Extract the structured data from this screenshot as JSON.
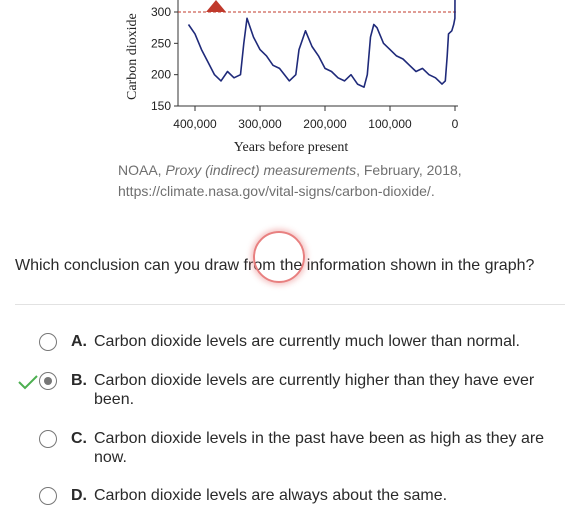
{
  "chart": {
    "ylabel": "Carbon dioxide",
    "xlabel": "Years before present",
    "y_ticks": [
      "300",
      "250",
      "200",
      "150"
    ],
    "x_ticks": [
      "400,000",
      "300,000",
      "200,000",
      "100,000",
      "0"
    ]
  },
  "chart_data": {
    "type": "line",
    "ylabel": "Carbon dioxide",
    "xlabel": "Years before present",
    "ylim": [
      150,
      320
    ],
    "xlim": [
      400000,
      0
    ],
    "reference_line": 300,
    "x": [
      410000,
      400000,
      390000,
      380000,
      370000,
      360000,
      350000,
      340000,
      330000,
      325000,
      320000,
      310000,
      300000,
      290000,
      280000,
      270000,
      255000,
      245000,
      240000,
      230000,
      220000,
      210000,
      200000,
      190000,
      180000,
      170000,
      160000,
      150000,
      140000,
      135000,
      130000,
      125000,
      120000,
      110000,
      100000,
      90000,
      80000,
      70000,
      60000,
      50000,
      40000,
      30000,
      20000,
      15000,
      12000,
      10000,
      5000,
      2000,
      100,
      0
    ],
    "y": [
      280,
      265,
      240,
      220,
      200,
      190,
      205,
      195,
      200,
      250,
      290,
      260,
      240,
      230,
      215,
      210,
      190,
      200,
      240,
      270,
      245,
      230,
      210,
      205,
      195,
      190,
      200,
      185,
      180,
      200,
      260,
      280,
      275,
      250,
      240,
      230,
      225,
      215,
      205,
      210,
      200,
      195,
      185,
      190,
      230,
      265,
      270,
      280,
      290,
      405
    ]
  },
  "caption": {
    "source": "NOAA, ",
    "title_italic": "Proxy (indirect) measurements",
    "date": ", February, 2018,",
    "url": "https://climate.nasa.gov/vital-signs/carbon-dioxide/."
  },
  "question": "Which conclusion can you draw from the information shown in the graph?",
  "options": [
    {
      "letter": "A.",
      "text": "Carbon dioxide levels are currently much lower than normal.",
      "selected": false,
      "correct": false
    },
    {
      "letter": "B.",
      "text": "Carbon dioxide levels are currently higher than they have ever been.",
      "selected": true,
      "correct": true
    },
    {
      "letter": "C.",
      "text": "Carbon dioxide levels in the past have been as high as they are now.",
      "selected": false,
      "correct": false
    },
    {
      "letter": "D.",
      "text": "Carbon dioxide levels are always about the same.",
      "selected": false,
      "correct": false
    }
  ],
  "colors": {
    "line": "#1f2a7a",
    "reference": "#c0392b",
    "check": "#4caf50",
    "ring": "#e88080"
  }
}
